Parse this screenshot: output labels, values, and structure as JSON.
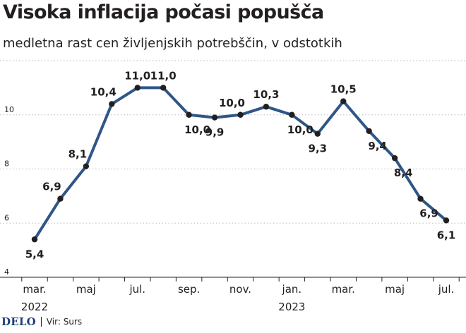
{
  "title": "Visoka inflacija počasi popušča",
  "subtitle": "medletna rast cen življenjskih potrebščin, v odstotkih",
  "chart_data": {
    "type": "line",
    "x": [
      "2022-03",
      "2022-04",
      "2022-05",
      "2022-06",
      "2022-07",
      "2022-08",
      "2022-09",
      "2022-10",
      "2022-11",
      "2022-12",
      "2023-01",
      "2023-02",
      "2023-03",
      "2023-04",
      "2023-05",
      "2023-06",
      "2023-07"
    ],
    "series": [
      {
        "values": [
          5.4,
          6.9,
          8.1,
          10.4,
          11.0,
          11.0,
          10.0,
          9.9,
          10.0,
          10.3,
          10.0,
          9.3,
          10.5,
          9.4,
          8.4,
          6.9,
          6.1
        ]
      }
    ],
    "data_labels": [
      "5,4",
      "6,9",
      "8,1",
      "10,4",
      "11,0",
      "11,0",
      "10,0",
      "9,9",
      "10,0",
      "10,3",
      "10,0",
      "9,3",
      "10,5",
      "9,4",
      "8,4",
      "6,9",
      "6,1"
    ],
    "y_ticks": [
      4,
      6,
      8,
      10
    ],
    "y_tick_labels": [
      "4",
      "6",
      "8",
      "10"
    ],
    "x_tick_labels": [
      {
        "month_index": 0,
        "label": "mar."
      },
      {
        "month_index": 2,
        "label": "maj"
      },
      {
        "month_index": 4,
        "label": "jul."
      },
      {
        "month_index": 6,
        "label": "sep."
      },
      {
        "month_index": 8,
        "label": "nov."
      },
      {
        "month_index": 10,
        "label": "jan."
      },
      {
        "month_index": 12,
        "label": "mar."
      },
      {
        "month_index": 14,
        "label": "maj"
      },
      {
        "month_index": 16,
        "label": "jul."
      }
    ],
    "year_labels": [
      {
        "month_index": 0,
        "label": "2022"
      },
      {
        "month_index": 10,
        "label": "2023"
      }
    ],
    "ylim": [
      4,
      12
    ],
    "grid": true,
    "line_color": "#2e5687",
    "marker_color": "#231f20",
    "grid_color": "#b9b9b9"
  },
  "footer": {
    "logo": "DELO",
    "source": "Vir: Surs"
  }
}
